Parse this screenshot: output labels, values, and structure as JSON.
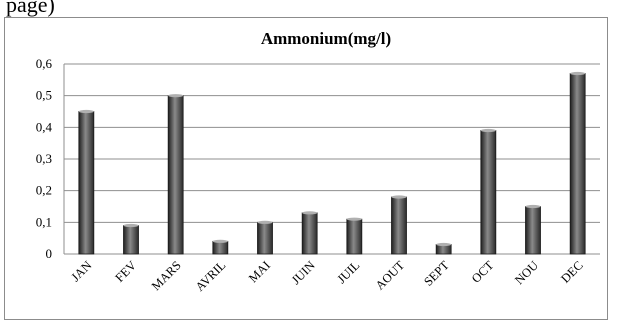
{
  "snippet": {
    "text": "page)"
  },
  "chart_data": {
    "type": "bar",
    "title": "Ammonium(mg/l)",
    "xlabel": "",
    "ylabel": "",
    "categories": [
      "JAN",
      "FEV",
      "MARS",
      "AVRIL",
      "MAI",
      "JUIN",
      "JUIL",
      "AOUT",
      "SEPT",
      "OCT",
      "NOU",
      "DEC"
    ],
    "values": [
      0.45,
      0.09,
      0.5,
      0.04,
      0.1,
      0.13,
      0.11,
      0.18,
      0.03,
      0.39,
      0.15,
      0.57
    ],
    "ylim": [
      0,
      0.6
    ],
    "yticks": [
      "0",
      "0,1",
      "0,2",
      "0,3",
      "0,4",
      "0,5",
      "0,6"
    ],
    "grid": true,
    "legend": "none",
    "colors": {
      "bar": "#3d3d3d",
      "bar_highlight": "#8a8a8a",
      "grid": "#8f8f8f"
    }
  }
}
